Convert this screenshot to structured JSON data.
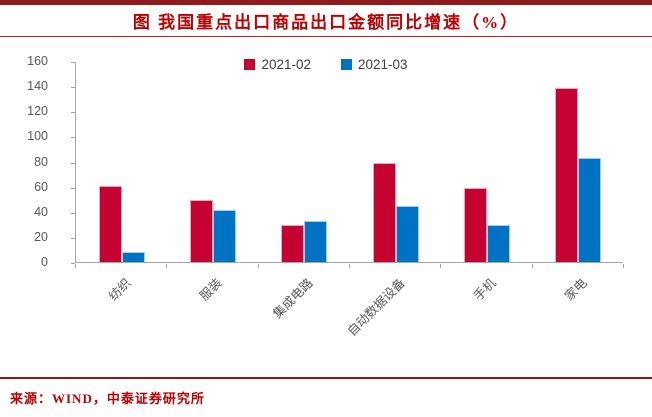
{
  "header": {
    "title": "图 我国重点出口商品出口金额同比增速（%）"
  },
  "chart_data": {
    "type": "bar",
    "categories": [
      "纺织",
      "服装",
      "集成电路",
      "自动数据设备",
      "手机",
      "家电"
    ],
    "series": [
      {
        "name": "2021-02",
        "color": "#c60232",
        "values": [
          61,
          50,
          30,
          79,
          59,
          139
        ]
      },
      {
        "name": "2021-03",
        "color": "#0072c4",
        "values": [
          8,
          42,
          33,
          45,
          30,
          83
        ]
      }
    ],
    "title": "图 我国重点出口商品出口金额同比增速（%）",
    "xlabel": "",
    "ylabel": "",
    "ylim": [
      0,
      160
    ],
    "yticks": [
      0,
      20,
      40,
      60,
      80,
      100,
      120,
      140,
      160
    ],
    "grid": false,
    "legend_position": "top-center"
  },
  "footer": {
    "source": "来源：WIND，中泰证券研究所"
  },
  "colors": {
    "top_rule": "#8e1c1c",
    "title_text": "#bf0000",
    "series_1": "#c60232",
    "series_2": "#0072c4",
    "axis": "#a6a6a6",
    "axis_text": "#595959",
    "legend_text": "#404040",
    "source_text": "#c00000"
  }
}
